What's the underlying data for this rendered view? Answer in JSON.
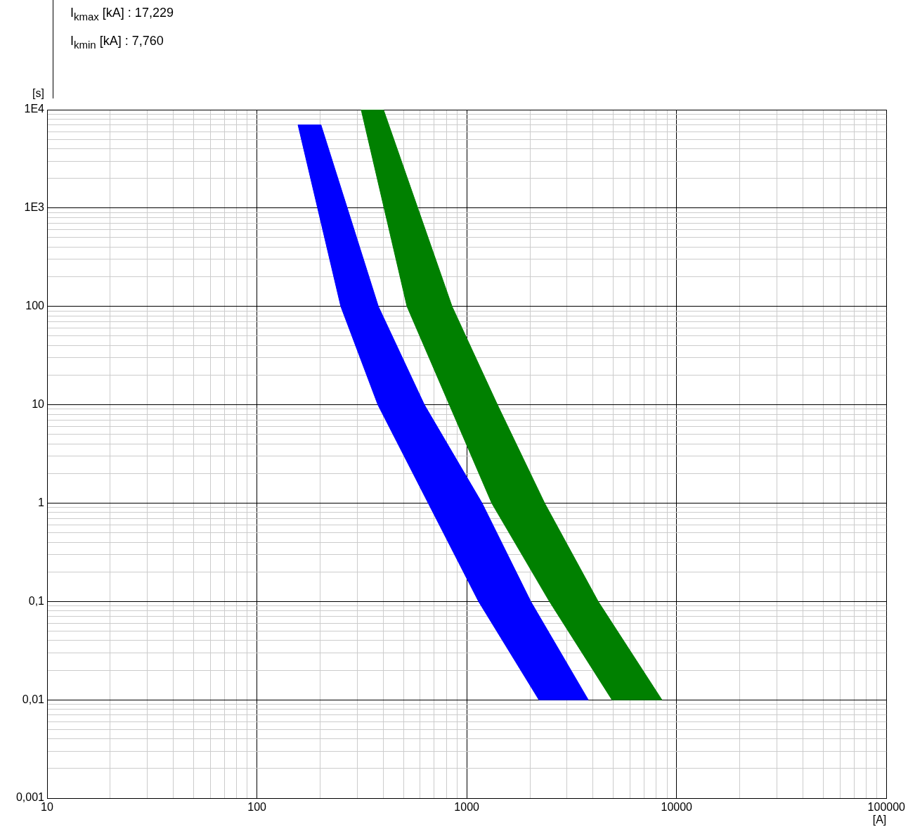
{
  "chart_data": {
    "type": "area",
    "xlabel": "[A]",
    "ylabel": "[s]",
    "annotations": [
      "I$_{kmax}$ [kA] : 17,229",
      "I$_{kmin}$ [kA] : 7,760"
    ],
    "log": "xy",
    "grid": true,
    "legend": false,
    "marker": "none",
    "xlim": [
      10,
      100000
    ],
    "ylim": [
      0.001,
      10000
    ],
    "xticks": [
      10,
      {
        "value": 20,
        "label": null
      },
      {
        "value": 30,
        "label": null
      },
      {
        "value": 40,
        "label": null
      },
      {
        "value": 50,
        "label": null
      },
      {
        "value": 60,
        "label": null
      },
      {
        "value": 70,
        "label": null
      },
      {
        "value": 80,
        "label": null
      },
      {
        "value": 90,
        "label": null
      },
      100,
      {
        "value": 200,
        "label": null
      },
      {
        "value": 300,
        "label": null
      },
      {
        "value": 400,
        "label": null
      },
      {
        "value": 500,
        "label": null
      },
      {
        "value": 600,
        "label": null
      },
      {
        "value": 700,
        "label": null
      },
      {
        "value": 800,
        "label": null
      },
      {
        "value": 900,
        "label": null
      },
      1000,
      {
        "value": 2000,
        "label": null
      },
      {
        "value": 3000,
        "label": null
      },
      {
        "value": 4000,
        "label": null
      },
      {
        "value": 5000,
        "label": null
      },
      {
        "value": 6000,
        "label": null
      },
      {
        "value": 7000,
        "label": null
      },
      {
        "value": 8000,
        "label": null
      },
      {
        "value": 9000,
        "label": null
      },
      10000,
      {
        "value": 20000,
        "label": null
      },
      {
        "value": 30000,
        "label": null
      },
      {
        "value": 40000,
        "label": null
      },
      {
        "value": 50000,
        "label": null
      },
      {
        "value": 60000,
        "label": null
      },
      {
        "value": 70000,
        "label": null
      },
      {
        "value": 80000,
        "label": null
      },
      {
        "value": 90000,
        "label": null
      },
      100000
    ],
    "yticks": [
      {
        "value": 0.001,
        "label": "0,001"
      },
      {
        "value": 0.002,
        "label": null
      },
      {
        "value": 0.003,
        "label": null
      },
      {
        "value": 0.004,
        "label": null
      },
      {
        "value": 0.005,
        "label": null
      },
      {
        "value": 0.006,
        "label": null
      },
      {
        "value": 0.007,
        "label": null
      },
      {
        "value": 0.008,
        "label": null
      },
      {
        "value": 0.009,
        "label": null
      },
      {
        "value": 0.01,
        "label": "0,01"
      },
      {
        "value": 0.02,
        "label": null
      },
      {
        "value": 0.03,
        "label": null
      },
      {
        "value": 0.04,
        "label": null
      },
      {
        "value": 0.05,
        "label": null
      },
      {
        "value": 0.06,
        "label": null
      },
      {
        "value": 0.07,
        "label": null
      },
      {
        "value": 0.08,
        "label": null
      },
      {
        "value": 0.09,
        "label": null
      },
      {
        "value": 0.1,
        "label": "0,1"
      },
      {
        "value": 0.2,
        "label": null
      },
      {
        "value": 0.3,
        "label": null
      },
      {
        "value": 0.4,
        "label": null
      },
      {
        "value": 0.5,
        "label": null
      },
      {
        "value": 0.6,
        "label": null
      },
      {
        "value": 0.7,
        "label": null
      },
      {
        "value": 0.8,
        "label": null
      },
      {
        "value": 0.9,
        "label": null
      },
      1,
      {
        "value": 2,
        "label": null
      },
      {
        "value": 3,
        "label": null
      },
      {
        "value": 4,
        "label": null
      },
      {
        "value": 5,
        "label": null
      },
      {
        "value": 6,
        "label": null
      },
      {
        "value": 7,
        "label": null
      },
      {
        "value": 8,
        "label": null
      },
      {
        "value": 9,
        "label": null
      },
      10,
      {
        "value": 20,
        "label": null
      },
      {
        "value": 30,
        "label": null
      },
      {
        "value": 40,
        "label": null
      },
      {
        "value": 50,
        "label": null
      },
      {
        "value": 60,
        "label": null
      },
      {
        "value": 70,
        "label": null
      },
      {
        "value": 80,
        "label": null
      },
      {
        "value": 90,
        "label": null
      },
      100,
      {
        "value": 200,
        "label": null
      },
      {
        "value": 300,
        "label": null
      },
      {
        "value": 400,
        "label": null
      },
      {
        "value": 500,
        "label": null
      },
      {
        "value": 600,
        "label": null
      },
      {
        "value": 700,
        "label": null
      },
      {
        "value": 800,
        "label": null
      },
      {
        "value": 900,
        "label": null
      },
      {
        "value": 1000,
        "label": "1E3"
      },
      {
        "value": 2000,
        "label": null
      },
      {
        "value": 3000,
        "label": null
      },
      {
        "value": 4000,
        "label": null
      },
      {
        "value": 5000,
        "label": null
      },
      {
        "value": 6000,
        "label": null
      },
      {
        "value": 7000,
        "label": null
      },
      {
        "value": 8000,
        "label": null
      },
      {
        "value": 9000,
        "label": null
      },
      {
        "value": 10000,
        "label": "1E4"
      }
    ],
    "series": [
      {
        "color": "#0000ff",
        "x": [
          157,
          251,
          377,
          1138,
          2207,
          3793,
          2018,
          1183,
          628,
          379,
          202,
          157
        ],
        "values": [
          7000,
          100,
          10,
          0.1,
          0.01,
          0.01,
          0.1,
          1,
          10,
          100,
          7000,
          7000
        ]
      },
      {
        "color": "#008000",
        "x": [
          314,
          519,
          1315,
          2477,
          4920,
          8510,
          4230,
          2350,
          1400,
          851,
          401,
          314
        ],
        "values": [
          10000,
          100,
          1,
          0.1,
          0.01,
          0.01,
          0.1,
          1,
          10,
          100,
          10000,
          10000
        ]
      }
    ]
  }
}
